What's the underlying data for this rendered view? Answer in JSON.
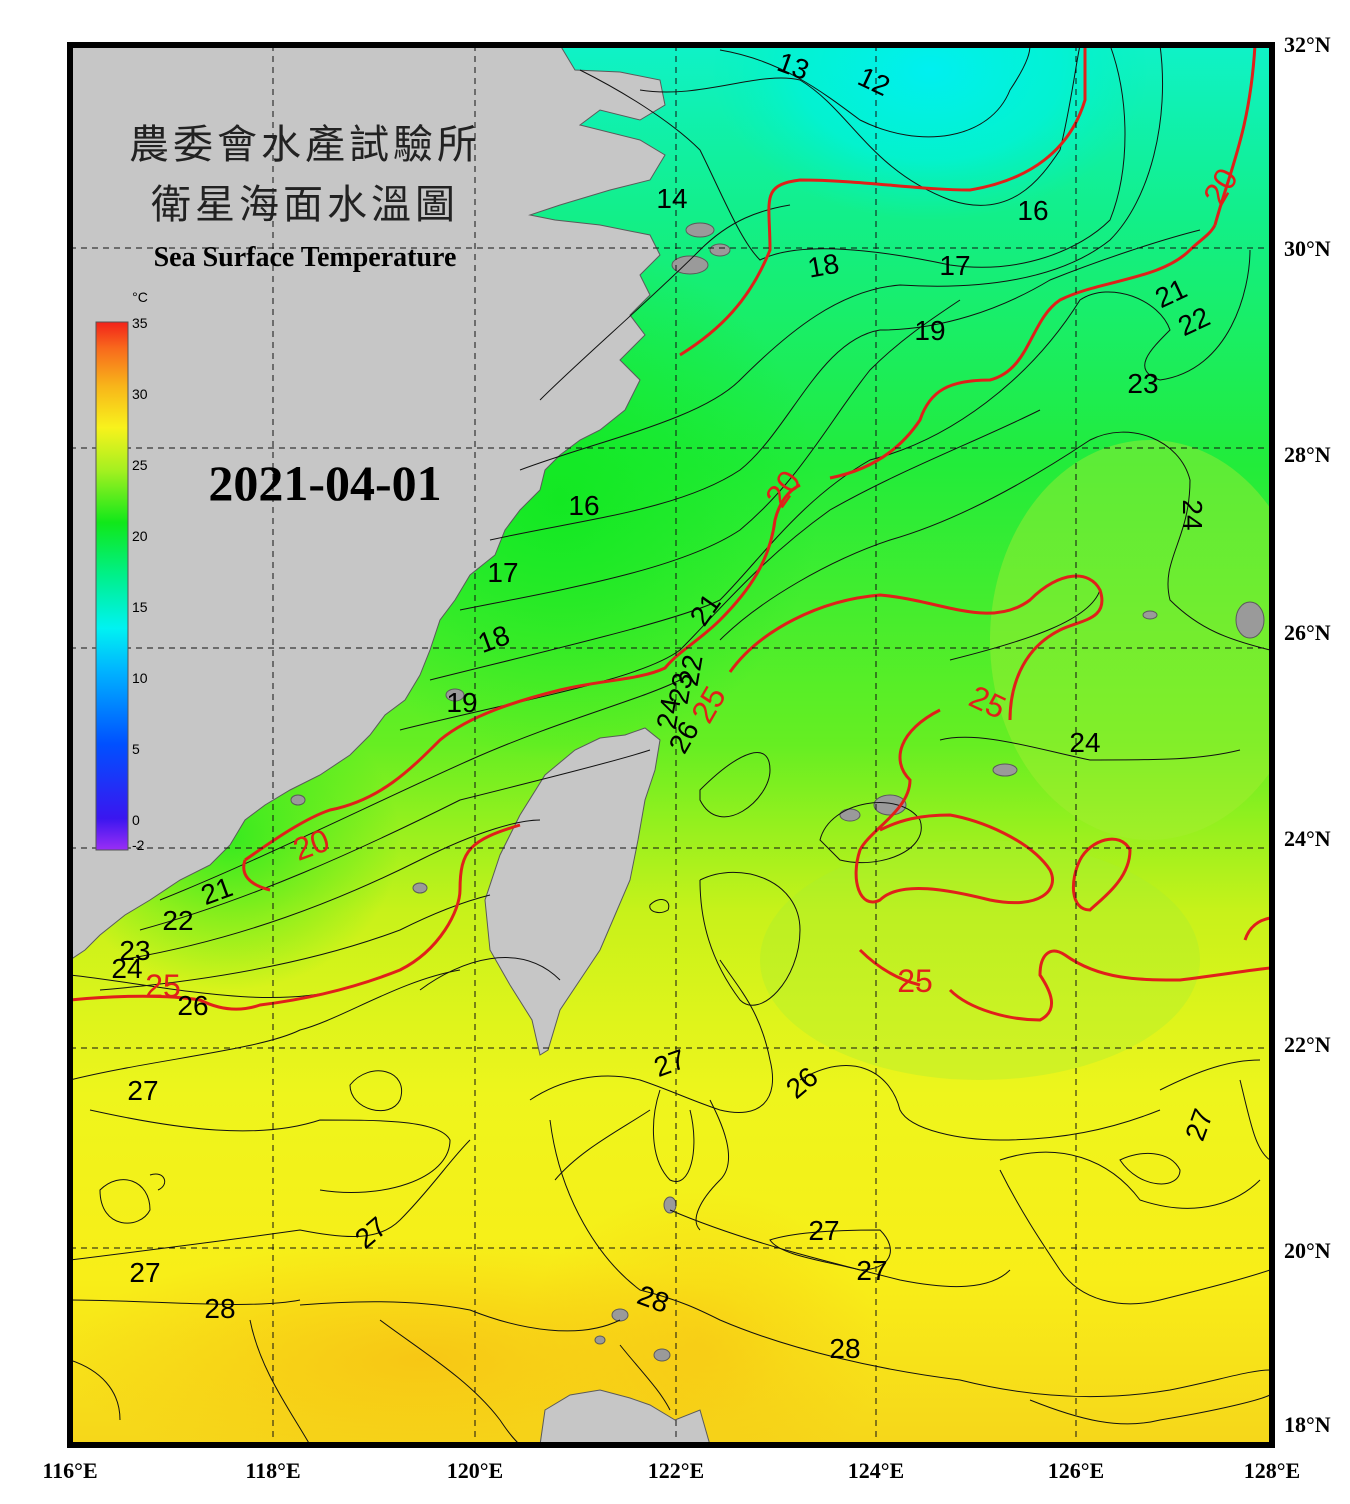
{
  "title_cn_line1": "農委會水產試驗所",
  "title_cn_line2": "衛星海面水溫圖",
  "title_en": "Sea Surface Temperature",
  "date": "2021-04-01",
  "colorbar": {
    "unit": "°C",
    "ticks": [
      "35",
      "30",
      "25",
      "20",
      "15",
      "10",
      "5",
      "0",
      "-2"
    ]
  },
  "axes": {
    "lon_labels": [
      "116°E",
      "118°E",
      "120°E",
      "122°E",
      "124°E",
      "126°E",
      "128°E"
    ],
    "lat_labels": [
      "32°N",
      "30°N",
      "28°N",
      "26°N",
      "24°N",
      "22°N",
      "20°N",
      "18°N"
    ]
  },
  "isotherm_labels": [
    {
      "text": "13"
    },
    {
      "text": "12"
    },
    {
      "text": "14"
    },
    {
      "text": "16"
    },
    {
      "text": "17"
    },
    {
      "text": "18"
    },
    {
      "text": "19"
    },
    {
      "text": "21"
    },
    {
      "text": "22"
    },
    {
      "text": "23"
    },
    {
      "text": "24"
    },
    {
      "text": "16"
    },
    {
      "text": "17"
    },
    {
      "text": "18"
    },
    {
      "text": "19"
    },
    {
      "text": "21"
    },
    {
      "text": "22"
    },
    {
      "text": "23"
    },
    {
      "text": "24"
    },
    {
      "text": "26"
    },
    {
      "text": "21"
    },
    {
      "text": "22"
    },
    {
      "text": "23"
    },
    {
      "text": "24"
    },
    {
      "text": "26"
    },
    {
      "text": "27"
    },
    {
      "text": "27"
    },
    {
      "text": "27"
    },
    {
      "text": "28"
    },
    {
      "text": "27"
    },
    {
      "text": "26"
    },
    {
      "text": "27"
    },
    {
      "text": "27"
    },
    {
      "text": "28"
    },
    {
      "text": "28"
    },
    {
      "text": "24"
    },
    {
      "text": "27"
    }
  ],
  "isotherm_labels_red": [
    {
      "text": "20"
    },
    {
      "text": "20"
    },
    {
      "text": "20"
    },
    {
      "text": "25"
    },
    {
      "text": "25"
    },
    {
      "text": "25"
    },
    {
      "text": "25"
    }
  ]
}
